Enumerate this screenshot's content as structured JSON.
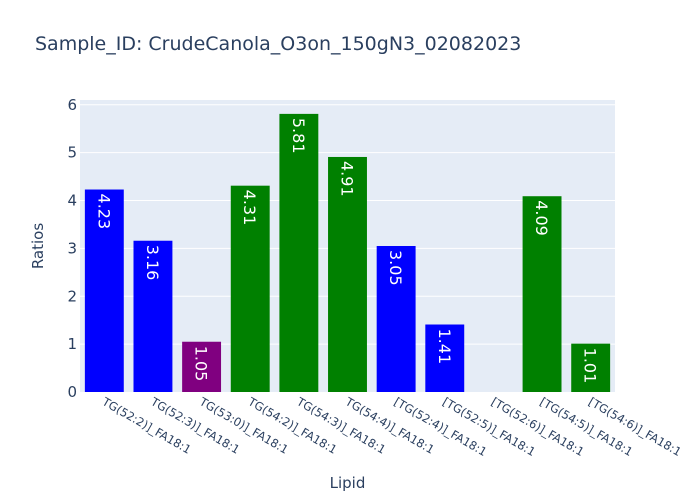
{
  "chart_data": {
    "type": "bar",
    "title": "Sample_ID: CrudeCanola_O3on_150gN3_02082023",
    "xlabel": "Lipid",
    "ylabel": "Ratios",
    "ylim": [
      0,
      6.1
    ],
    "yticks": [
      "0",
      "1",
      "2",
      "3",
      "4",
      "5",
      "6"
    ],
    "grid": true,
    "categories": [
      "TG(52:2)]_FA18:1",
      "TG(52:3)]_FA18:1",
      "TG(53:0)]_FA18:1",
      "TG(54:2)]_FA18:1",
      "TG(54:3)]_FA18:1",
      "TG(54:4)]_FA18:1",
      "[TG(52:4)]_FA18:1",
      "[TG(52:5)]_FA18:1",
      "[TG(52:6)]_FA18:1",
      "[TG(54:5)]_FA18:1",
      "[TG(54:6)]_FA18:1"
    ],
    "values": [
      4.23,
      3.16,
      1.05,
      4.31,
      5.81,
      4.91,
      3.05,
      1.41,
      null,
      4.09,
      1.01
    ],
    "labels": [
      "4.23",
      "3.16",
      "1.05",
      "4.31",
      "5.81",
      "4.91",
      "3.05",
      "1.41",
      "",
      "4.09",
      "1.01"
    ],
    "colors": [
      "#0000ff",
      "#0000ff",
      "#800080",
      "#008000",
      "#008000",
      "#008000",
      "#0000ff",
      "#0000ff",
      "#0000ff",
      "#008000",
      "#008000"
    ],
    "plot_bg": "#e5ecf6",
    "text_color": "#2a3f5f"
  }
}
